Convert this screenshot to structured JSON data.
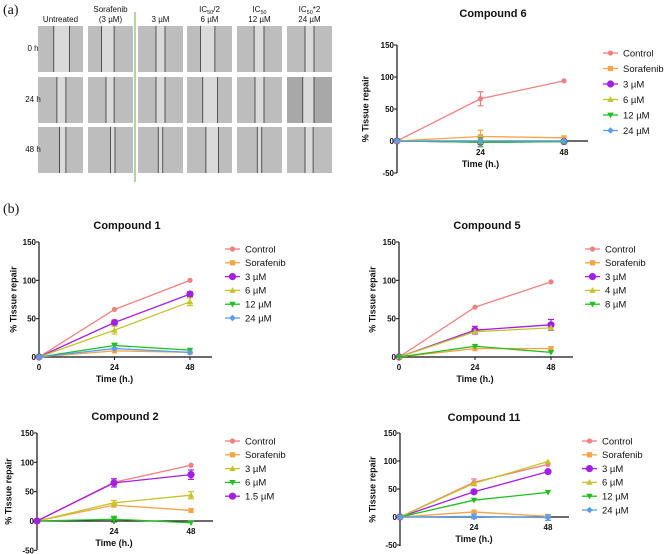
{
  "panel_a": {
    "label": "(a)",
    "columns": [
      {
        "line1": "",
        "main": "Untreated",
        "sub": "",
        "suffix": ""
      },
      {
        "line1": "Sorafenib",
        "main": "(3 µM)",
        "sub": "",
        "suffix": ""
      },
      {
        "line1": "",
        "main": "3 µM",
        "sub": "",
        "suffix": ""
      },
      {
        "line1": "IC",
        "line1_sub": "50",
        "line1_suffix": "/2",
        "main": "6 µM"
      },
      {
        "line1": "IC",
        "line1_sub": "50",
        "line1_suffix": "",
        "main": "12 µM"
      },
      {
        "line1": "IC",
        "line1_sub": "50",
        "line1_suffix": "*2",
        "main": "24 µM"
      }
    ],
    "rows": [
      "0 h",
      "24 h",
      "48 h"
    ],
    "divider_color": "#6aa84f"
  },
  "panel_b": {
    "label": "(b)"
  },
  "chart_data": [
    {
      "id": "compound6",
      "type": "line",
      "title": "Compound 6",
      "xlabel": "Time (h.)",
      "ylabel": "% Tissue repair",
      "x": [
        0,
        24,
        48
      ],
      "xlim": [
        0,
        48
      ],
      "ylim": [
        -50,
        150
      ],
      "y_ticks": [
        -50,
        0,
        50,
        100,
        150
      ],
      "x_ticks": [
        24,
        48
      ],
      "legend": "right",
      "series": [
        {
          "name": "Control",
          "color": "#f08080",
          "marker": "circle",
          "values": [
            0,
            66,
            94
          ],
          "errors": [
            0,
            11,
            0
          ]
        },
        {
          "name": "Sorafenib",
          "color": "#f7a348",
          "marker": "square",
          "values": [
            0,
            7,
            5
          ],
          "errors": [
            0,
            10,
            0
          ]
        },
        {
          "name": "3 µM",
          "color": "#a51fe0",
          "marker": "big-circle",
          "values": [
            0,
            -2,
            -1
          ],
          "errors": [
            0,
            0,
            0
          ]
        },
        {
          "name": "6 µM",
          "color": "#c4c42a",
          "marker": "triangle-up",
          "values": [
            0,
            -1,
            -1
          ],
          "errors": [
            0,
            0,
            0
          ]
        },
        {
          "name": "12 µM",
          "color": "#1fbf1f",
          "marker": "triangle-down",
          "values": [
            0,
            -2,
            -1
          ],
          "errors": [
            0,
            7,
            3
          ]
        },
        {
          "name": "24 µM",
          "color": "#5a9ef0",
          "marker": "diamond",
          "values": [
            0,
            0,
            0
          ],
          "errors": [
            0,
            0,
            0
          ]
        }
      ]
    },
    {
      "id": "compound1",
      "type": "line",
      "title": "Compound 1",
      "xlabel": "Time (h.)",
      "ylabel": "% Tissue repair",
      "x": [
        0,
        24,
        48
      ],
      "xlim": [
        0,
        48
      ],
      "ylim": [
        0,
        150
      ],
      "y_ticks": [
        0,
        50,
        100,
        150
      ],
      "x_ticks": [
        0,
        24,
        48
      ],
      "legend": "right",
      "series": [
        {
          "name": "Control",
          "color": "#f08080",
          "marker": "circle",
          "values": [
            0,
            62,
            100
          ],
          "errors": [
            0,
            0,
            0
          ]
        },
        {
          "name": "Sorafenib",
          "color": "#f7a348",
          "marker": "square",
          "values": [
            0,
            8,
            6
          ],
          "errors": [
            0,
            0,
            0
          ]
        },
        {
          "name": "3 µM",
          "color": "#a51fe0",
          "marker": "big-circle",
          "values": [
            0,
            45,
            82
          ],
          "errors": [
            0,
            3,
            3
          ]
        },
        {
          "name": "6 µM",
          "color": "#c4c42a",
          "marker": "triangle-up",
          "values": [
            0,
            35,
            72
          ],
          "errors": [
            0,
            5,
            5
          ]
        },
        {
          "name": "12 µM",
          "color": "#1fbf1f",
          "marker": "triangle-down",
          "values": [
            0,
            15,
            9
          ],
          "errors": [
            0,
            3,
            0
          ]
        },
        {
          "name": "24 µM",
          "color": "#5a9ef0",
          "marker": "diamond",
          "values": [
            0,
            11,
            6
          ],
          "errors": [
            0,
            0,
            0
          ]
        }
      ]
    },
    {
      "id": "compound5",
      "type": "line",
      "title": "Compound 5",
      "xlabel": "Time (h.)",
      "ylabel": "% Tissue repair",
      "x": [
        0,
        24,
        48
      ],
      "xlim": [
        0,
        48
      ],
      "ylim": [
        0,
        150
      ],
      "y_ticks": [
        0,
        50,
        100,
        150
      ],
      "x_ticks": [
        0,
        24,
        48
      ],
      "legend": "right",
      "series": [
        {
          "name": "Control",
          "color": "#f08080",
          "marker": "circle",
          "values": [
            0,
            65,
            98
          ],
          "errors": [
            0,
            0,
            0
          ]
        },
        {
          "name": "Sorafenib",
          "color": "#f7a348",
          "marker": "square",
          "values": [
            0,
            11,
            11
          ],
          "errors": [
            0,
            0,
            0
          ]
        },
        {
          "name": "3 µM",
          "color": "#a51fe0",
          "marker": "big-circle",
          "values": [
            0,
            35,
            42
          ],
          "errors": [
            0,
            5,
            7
          ]
        },
        {
          "name": "4 µM",
          "color": "#c4c42a",
          "marker": "triangle-up",
          "values": [
            0,
            33,
            38
          ],
          "errors": [
            0,
            0,
            0
          ]
        },
        {
          "name": "8 µM",
          "color": "#1fbf1f",
          "marker": "triangle-down",
          "values": [
            0,
            14,
            6
          ],
          "errors": [
            0,
            0,
            0
          ]
        }
      ]
    },
    {
      "id": "compound2",
      "type": "line",
      "title": "Compound 2",
      "xlabel": "Time (h.)",
      "ylabel": "% Tissue repair",
      "x": [
        0,
        24,
        48
      ],
      "xlim": [
        0,
        48
      ],
      "ylim": [
        -50,
        150
      ],
      "y_ticks": [
        -50,
        0,
        50,
        100,
        150
      ],
      "x_ticks": [
        24,
        48
      ],
      "legend": "right",
      "series": [
        {
          "name": "Control",
          "color": "#f08080",
          "marker": "circle",
          "values": [
            0,
            66,
            95
          ],
          "errors": [
            0,
            0,
            0
          ]
        },
        {
          "name": "Sorafenib",
          "color": "#f7a348",
          "marker": "square",
          "values": [
            0,
            27,
            18
          ],
          "errors": [
            0,
            0,
            0
          ]
        },
        {
          "name": "3 µM",
          "color": "#c4c42a",
          "marker": "triangle-up",
          "values": [
            0,
            31,
            44
          ],
          "errors": [
            0,
            4,
            6
          ]
        },
        {
          "name": "6 µM",
          "color": "#1fbf1f",
          "marker": "triangle-down",
          "values": [
            0,
            3,
            -3
          ],
          "errors": [
            0,
            5,
            0
          ]
        },
        {
          "name": "1.5 µM",
          "color": "#a51fe0",
          "marker": "big-circle",
          "values": [
            0,
            65,
            79
          ],
          "errors": [
            0,
            7,
            8
          ]
        }
      ]
    },
    {
      "id": "compound11",
      "type": "line",
      "title": "Compound 11",
      "xlabel": "Time (h.)",
      "ylabel": "% Tissue repair",
      "x": [
        0,
        24,
        48
      ],
      "xlim": [
        0,
        48
      ],
      "ylim": [
        -50,
        150
      ],
      "y_ticks": [
        -50,
        0,
        50,
        100,
        150
      ],
      "x_ticks": [
        24,
        48
      ],
      "legend": "right",
      "series": [
        {
          "name": "Control",
          "color": "#f08080",
          "marker": "circle",
          "values": [
            0,
            62,
            94
          ],
          "errors": [
            0,
            6,
            0
          ]
        },
        {
          "name": "Sorafenib",
          "color": "#f7a348",
          "marker": "square",
          "values": [
            0,
            9,
            1
          ],
          "errors": [
            0,
            0,
            0
          ]
        },
        {
          "name": "3 µM",
          "color": "#a51fe0",
          "marker": "big-circle",
          "values": [
            0,
            45,
            81
          ],
          "errors": [
            0,
            0,
            0
          ]
        },
        {
          "name": "6 µM",
          "color": "#c4c42a",
          "marker": "triangle-up",
          "values": [
            0,
            60,
            99
          ],
          "errors": [
            0,
            0,
            0
          ]
        },
        {
          "name": "12 µM",
          "color": "#1fbf1f",
          "marker": "triangle-down",
          "values": [
            0,
            30,
            44
          ],
          "errors": [
            0,
            0,
            0
          ]
        },
        {
          "name": "24 µM",
          "color": "#5a9ef0",
          "marker": "diamond",
          "values": [
            0,
            1,
            -1
          ],
          "errors": [
            0,
            4,
            5
          ]
        }
      ]
    }
  ]
}
